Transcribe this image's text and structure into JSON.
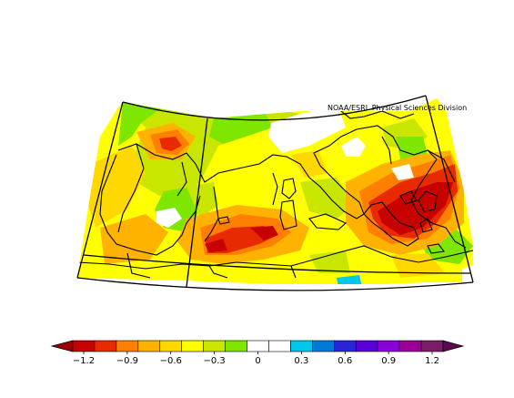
{
  "credit": "NOAA/ESRL Physical Sciences Division",
  "colorbar": {
    "bins": [
      {
        "color": "#c70000"
      },
      {
        "color": "#e82a00"
      },
      {
        "color": "#ff8000"
      },
      {
        "color": "#ffb300"
      },
      {
        "color": "#ffd800"
      },
      {
        "color": "#ffff00"
      },
      {
        "color": "#c8e600"
      },
      {
        "color": "#7fe600"
      },
      {
        "color": "#ffffff"
      },
      {
        "color": "#ffffff"
      },
      {
        "color": "#00c8ea"
      },
      {
        "color": "#0078d8"
      },
      {
        "color": "#2a24d8"
      },
      {
        "color": "#5a00d8"
      },
      {
        "color": "#8a00d8"
      },
      {
        "color": "#9a0096"
      },
      {
        "color": "#7a1d66"
      }
    ],
    "left_arrow_color": "#9a0000",
    "right_arrow_color": "#5c0a4d",
    "tick_labels": [
      "−1.2",
      "−0.9",
      "−0.6",
      "−0.3",
      "0",
      "0.3",
      "0.6",
      "0.9",
      "1.2"
    ]
  }
}
